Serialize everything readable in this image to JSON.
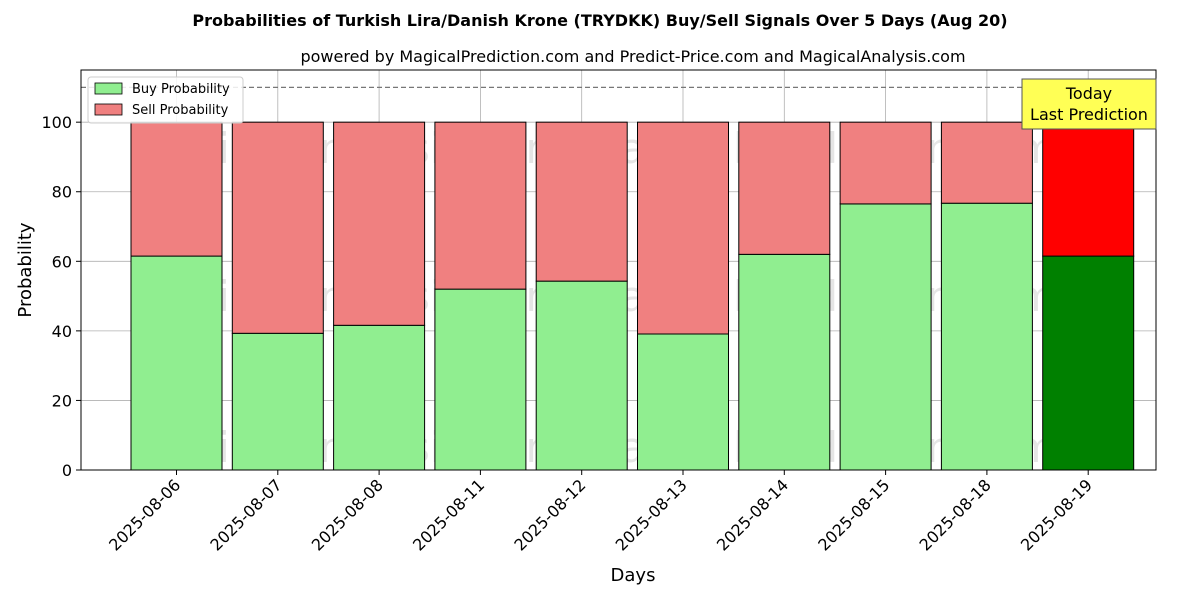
{
  "chart_data": {
    "type": "bar",
    "stacked": true,
    "title": "Probabilities of Turkish Lira/Danish Krone (TRYDKK) Buy/Sell Signals Over 5 Days (Aug 20)",
    "subtitle": "powered by MagicalPrediction.com and Predict-Price.com and MagicalAnalysis.com",
    "xlabel": "Days",
    "ylabel": "Probability",
    "ylim": [
      0,
      115
    ],
    "yticks": [
      0,
      20,
      40,
      60,
      80,
      100
    ],
    "grid": true,
    "legend_position": "top-left",
    "categories": [
      "2025-08-06",
      "2025-08-07",
      "2025-08-08",
      "2025-08-11",
      "2025-08-12",
      "2025-08-13",
      "2025-08-14",
      "2025-08-15",
      "2025-08-18",
      "2025-08-19"
    ],
    "series": [
      {
        "name": "Buy Probability",
        "color": "#90EE90",
        "highlight_color": "#008000",
        "values": [
          61.5,
          39.3,
          41.6,
          52.0,
          54.3,
          39.1,
          62.0,
          76.5,
          76.7,
          61.5
        ]
      },
      {
        "name": "Sell Probability",
        "color": "#F08080",
        "highlight_color": "#FF0000",
        "values": [
          38.5,
          60.7,
          58.4,
          48.0,
          45.7,
          60.9,
          38.0,
          23.5,
          23.3,
          38.5
        ]
      }
    ],
    "reference_line": {
      "y": 110,
      "style": "dashed"
    },
    "annotation": {
      "lines": [
        "Today",
        "Last Prediction"
      ],
      "category": "2025-08-19",
      "background": "#FFFF55"
    },
    "watermarks": [
      "MagicalAnalysis.com",
      "MagicalPrediction.com",
      "MagicalAnalysis.com",
      "MagicalPrediction.com",
      "MagicalAnalysis.com",
      "MagicalPrediction.com"
    ]
  }
}
